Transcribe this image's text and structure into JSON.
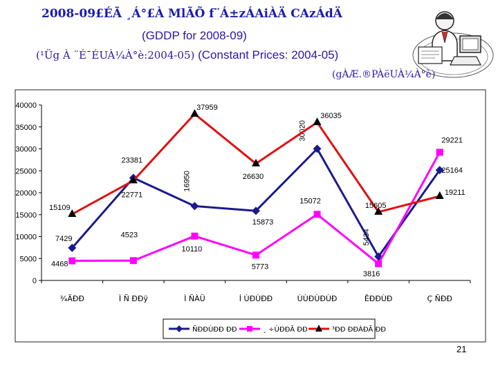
{
  "slide": {
    "title": "2008-09£ÉÃ ¸Á°£À MlÃÕ f¨Á±zÁAiÀÄ CAzÁdÄ",
    "subtitle": "(GDDP for 2008-09)",
    "line3_encoded": "(¹Üg À ¨É¯ÉUÀ¼À°è:2004-05)",
    "line3_english": "(Constant Prices: 2004-05)",
    "unit": "(gÀÆ.®PÀëUÀ¼À°è)",
    "page_number": "21"
  },
  "colors": {
    "series_1": "#1a1a8c",
    "series_2": "#ff00ff",
    "series_3": "#e01010",
    "title": "#1b1bb0",
    "text": "#2a16a8"
  },
  "chart_data": {
    "type": "line",
    "categories": [
      "¾ÃÐÐ",
      "Ì Ñ ÐÐÿ",
      "Ì ÑÀÜ",
      "Í ÙÐÙÐÐ",
      "ÙÙÐÙÐÙÐ",
      "ÊÐÐÙÐ",
      "Ç ÑÐÐ"
    ],
    "series": [
      {
        "name": "ÑÐÐÙÐÐ ÐÐ",
        "color": "#1a1a8c",
        "marker": "diamond",
        "values": [
          7429,
          23381,
          16950,
          15873,
          30020,
          5434,
          25164
        ],
        "labels": [
          "7429",
          "23381",
          "16950",
          "15873",
          "30020",
          "5434",
          "25164"
        ]
      },
      {
        "name": "¸ ÷ÙÐÐÃ ÐÐ",
        "color": "#ff00ff",
        "marker": "square",
        "values": [
          4468,
          4523,
          10110,
          5773,
          15072,
          3816,
          29221
        ],
        "labels": [
          "4468",
          "4523",
          "10110",
          "5773",
          "15072",
          "3816",
          "29221"
        ]
      },
      {
        "name": "³ÐÐ ÐÐÀÐÃ ÐÐ",
        "color": "#e01010",
        "marker": "triangle",
        "values": [
          15109,
          22771,
          37959,
          26630,
          36035,
          15605,
          19211
        ],
        "labels": [
          "15109",
          "22771",
          "37959",
          "26630",
          "36035",
          "15605",
          "19211"
        ]
      }
    ],
    "yticks": [
      "0",
      "5000",
      "10000",
      "15000",
      "20000",
      "25000",
      "30000",
      "35000",
      "40000"
    ],
    "ylim": [
      0,
      40000
    ],
    "grid": false,
    "legend": "bottom"
  }
}
